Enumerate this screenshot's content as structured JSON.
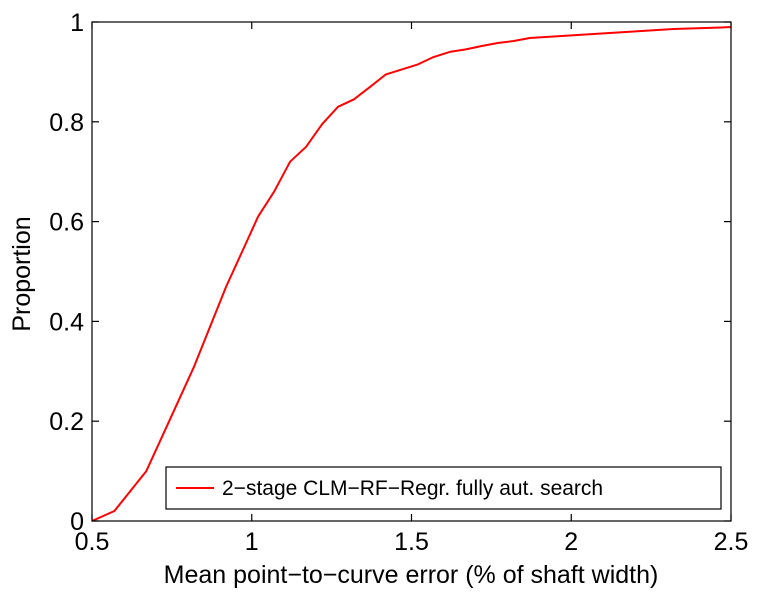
{
  "chart_data": {
    "type": "line",
    "title": "",
    "xlabel": "Mean point−to−curve error (% of shaft width)",
    "ylabel": "Proportion",
    "xlim": [
      0.5,
      2.5
    ],
    "ylim": [
      0,
      1
    ],
    "x_ticks": [
      0.5,
      1,
      1.5,
      2,
      2.5
    ],
    "x_tick_labels": [
      "0.5",
      "1",
      "1.5",
      "2",
      "2.5"
    ],
    "y_ticks": [
      0,
      0.2,
      0.4,
      0.6,
      0.8,
      1
    ],
    "y_tick_labels": [
      "0",
      "0.2",
      "0.4",
      "0.6",
      "0.8",
      "1"
    ],
    "grid": false,
    "legend_position": "bottom-right",
    "series": [
      {
        "name": "2−stage CLM−RF−Regr. fully aut. search",
        "color": "#ff0000",
        "x": [
          0.5,
          0.57,
          0.67,
          0.72,
          0.77,
          0.82,
          0.87,
          0.92,
          0.97,
          1.02,
          1.07,
          1.12,
          1.17,
          1.22,
          1.27,
          1.32,
          1.37,
          1.42,
          1.47,
          1.52,
          1.57,
          1.62,
          1.67,
          1.72,
          1.77,
          1.82,
          1.87,
          1.92,
          1.97,
          2.02,
          2.07,
          2.12,
          2.17,
          2.22,
          2.27,
          2.32,
          2.37,
          2.42,
          2.47,
          2.5
        ],
        "y": [
          0.0,
          0.02,
          0.1,
          0.17,
          0.24,
          0.31,
          0.39,
          0.47,
          0.54,
          0.61,
          0.66,
          0.72,
          0.75,
          0.795,
          0.83,
          0.845,
          0.87,
          0.895,
          0.905,
          0.915,
          0.93,
          0.94,
          0.945,
          0.952,
          0.958,
          0.962,
          0.968,
          0.97,
          0.972,
          0.974,
          0.976,
          0.978,
          0.98,
          0.982,
          0.984,
          0.986,
          0.987,
          0.988,
          0.989,
          0.99
        ]
      }
    ]
  }
}
